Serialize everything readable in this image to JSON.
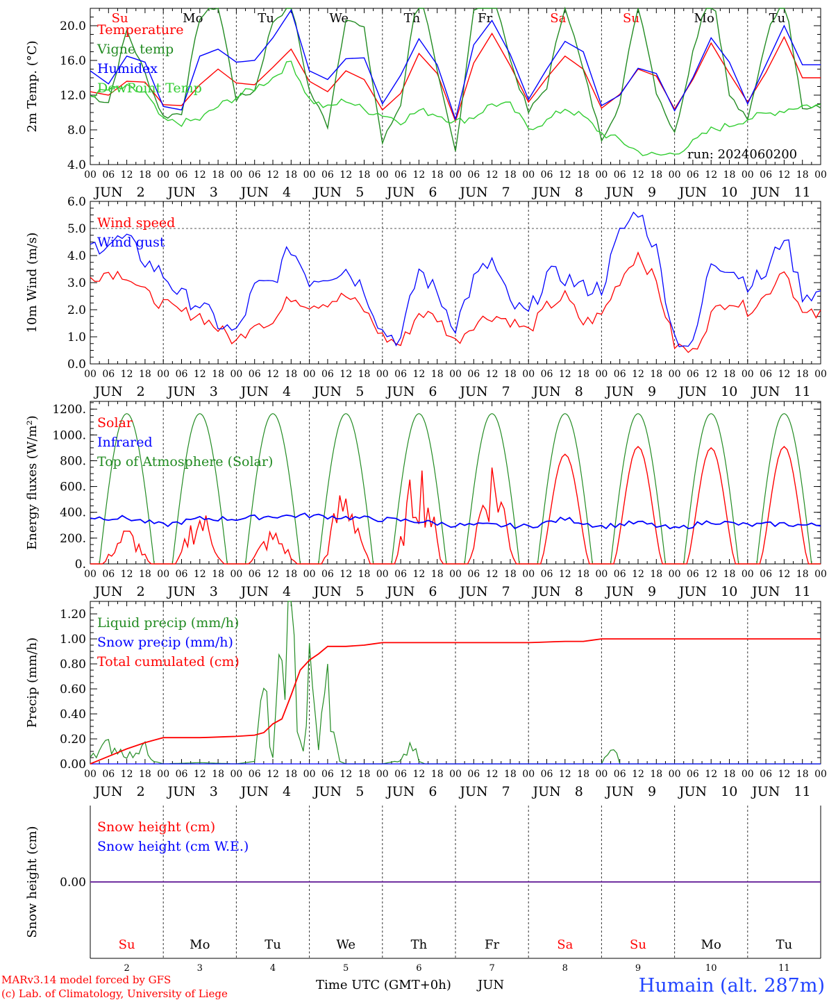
{
  "days": [
    "2",
    "3",
    "4",
    "5",
    "6",
    "7",
    "8",
    "9",
    "10",
    "11"
  ],
  "day_abbr": [
    "Su",
    "Mo",
    "Tu",
    "We",
    "Th",
    "Fr",
    "Sa",
    "Su",
    "Mo",
    "Tu"
  ],
  "weekend_flags": [
    true,
    false,
    false,
    false,
    false,
    false,
    true,
    true,
    false,
    false
  ],
  "hour_labels": [
    "00",
    "06",
    "12",
    "18"
  ],
  "month": "JUN",
  "run_label": "run: 2024060200",
  "colors": {
    "red": "#ff0000",
    "darkgreen": "#228b22",
    "blue": "#0000ff",
    "lightgreen": "#32cd32",
    "purple": "#7030a0",
    "grid": "#555555"
  },
  "chart_data": [
    {
      "type": "line",
      "ylabel": "2m Temp. (°C)",
      "ylim": [
        4,
        22
      ],
      "yticks": [
        "4.0",
        "8.0",
        "12.0",
        "16.0",
        "20.0"
      ],
      "ytick_values": [
        4,
        8,
        12,
        16,
        20
      ],
      "x_unit": "hours since 2024-06-02 00 UTC",
      "series": [
        {
          "name": "Temperature",
          "color": "#ff0000",
          "x": [
            0,
            6,
            12,
            18,
            24,
            30,
            36,
            42,
            48,
            54,
            60,
            66,
            72,
            78,
            84,
            90,
            96,
            102,
            108,
            114,
            120,
            126,
            132,
            138,
            144,
            150,
            156,
            162,
            168,
            174,
            180,
            186,
            192,
            198,
            204,
            210,
            216,
            222,
            228,
            234
          ],
          "y": [
            12.4,
            12.0,
            13.6,
            13.5,
            10.9,
            10.8,
            13.2,
            15.0,
            13.4,
            13.2,
            15.2,
            17.3,
            13.6,
            12.4,
            14.8,
            13.8,
            10.3,
            12.2,
            16.8,
            14.5,
            9.0,
            15.7,
            19.1,
            15.4,
            11.2,
            14.0,
            16.5,
            15.0,
            10.5,
            12.1,
            15.0,
            14.2,
            10.4,
            13.8,
            18.0,
            14.5,
            11.2,
            14.6,
            18.7,
            14.0
          ]
        },
        {
          "name": "Vigne temp",
          "color": "#228b22",
          "x": [
            0,
            6,
            12,
            18,
            24,
            30,
            36,
            42,
            48,
            54,
            60,
            66,
            72,
            78,
            84,
            90,
            96,
            102,
            108,
            114,
            120,
            126,
            132,
            138,
            144,
            150,
            156,
            162,
            168,
            174,
            180,
            186,
            192,
            198,
            204,
            210,
            216,
            222,
            228,
            234
          ],
          "y": [
            11.9,
            11.2,
            19.4,
            14.5,
            9.5,
            10.0,
            21.0,
            22.5,
            11.6,
            12.5,
            20.5,
            22.5,
            12.5,
            8.5,
            21.0,
            19.5,
            6.5,
            11.0,
            25.0,
            14.5,
            5.5,
            22.0,
            25.5,
            16.0,
            10.0,
            13.0,
            22.5,
            14.8,
            7.0,
            11.0,
            23.0,
            12.5,
            7.5,
            17.0,
            25.0,
            12.0,
            9.0,
            18.5,
            24.0,
            10.5
          ]
        },
        {
          "name": "Humidex",
          "color": "#0000ff",
          "x": [
            0,
            6,
            12,
            18,
            24,
            30,
            36,
            42,
            48,
            54,
            60,
            66,
            72,
            78,
            84,
            90,
            96,
            102,
            108,
            114,
            120,
            126,
            132,
            138,
            144,
            150,
            156,
            162,
            168,
            174,
            180,
            186,
            192,
            198,
            204,
            210,
            216,
            222,
            228,
            234
          ],
          "y": [
            14.8,
            13.3,
            16.5,
            15.8,
            10.7,
            10.3,
            16.5,
            17.3,
            15.8,
            16.0,
            18.6,
            21.8,
            14.8,
            13.8,
            16.2,
            16.3,
            11.0,
            14.3,
            18.5,
            15.5,
            9.2,
            17.8,
            20.6,
            16.7,
            11.5,
            15.0,
            18.2,
            17.0,
            10.8,
            12.0,
            15.1,
            14.5,
            10.2,
            14.0,
            18.6,
            15.8,
            11.0,
            15.5,
            20.0,
            15.5
          ]
        },
        {
          "name": "DewPoint Temp",
          "color": "#32cd32",
          "x": [
            0,
            6,
            12,
            18,
            24,
            30,
            36,
            42,
            48,
            54,
            60,
            66,
            72,
            78,
            84,
            90,
            96,
            102,
            108,
            114,
            120,
            126,
            132,
            138,
            144,
            150,
            156,
            162,
            168,
            174,
            180,
            186,
            192,
            198,
            204,
            210,
            216,
            222,
            228,
            234
          ],
          "y": [
            12.0,
            12.6,
            12.8,
            12.2,
            9.0,
            8.8,
            9.2,
            10.7,
            11.8,
            12.8,
            14.0,
            15.9,
            11.5,
            10.5,
            11.5,
            10.3,
            9.8,
            9.0,
            10.2,
            9.8,
            8.9,
            9.5,
            11.0,
            10.8,
            8.2,
            9.0,
            10.5,
            9.5,
            7.6,
            6.8,
            5.5,
            5.0,
            5.3,
            6.5,
            8.0,
            8.5,
            9.3,
            9.8,
            10.3,
            10.8
          ]
        }
      ]
    },
    {
      "type": "line",
      "ylabel": "10m Wind (m/s)",
      "ylim": [
        0,
        6
      ],
      "yticks": [
        "0.0",
        "1.0",
        "2.0",
        "3.0",
        "4.0",
        "5.0",
        "6.0"
      ],
      "ytick_values": [
        0,
        1,
        2,
        3,
        4,
        5,
        6
      ],
      "refline": 5,
      "x_unit": "hours since 2024-06-02 00 UTC",
      "series": [
        {
          "name": "Wind speed",
          "color": "#ff0000",
          "x": [
            0,
            6,
            12,
            18,
            24,
            30,
            36,
            42,
            48,
            54,
            60,
            66,
            72,
            78,
            84,
            90,
            96,
            102,
            108,
            114,
            120,
            126,
            132,
            138,
            144,
            150,
            156,
            162,
            168,
            174,
            180,
            186,
            192,
            198,
            204,
            210,
            216,
            222,
            228,
            234
          ],
          "y": [
            3.2,
            3.4,
            3.3,
            2.6,
            2.2,
            1.9,
            1.8,
            1.3,
            0.8,
            1.6,
            1.5,
            2.5,
            2.2,
            2.3,
            2.5,
            2.0,
            1.0,
            0.7,
            1.9,
            1.7,
            0.8,
            1.5,
            1.8,
            1.6,
            1.2,
            2.1,
            2.5,
            1.5,
            1.8,
            3.1,
            4.1,
            3.0,
            0.7,
            0.4,
            1.8,
            2.4,
            2.0,
            2.5,
            3.6,
            1.8
          ]
        },
        {
          "name": "Wind gust",
          "color": "#0000ff",
          "x": [
            0,
            6,
            12,
            18,
            24,
            30,
            36,
            42,
            48,
            54,
            60,
            66,
            72,
            78,
            84,
            90,
            96,
            102,
            108,
            114,
            120,
            126,
            132,
            138,
            144,
            150,
            156,
            162,
            168,
            174,
            180,
            186,
            192,
            198,
            204,
            210,
            216,
            222,
            228,
            234
          ],
          "y": [
            4.3,
            4.5,
            4.6,
            3.8,
            3.3,
            2.5,
            2.2,
            1.5,
            1.1,
            2.8,
            3.0,
            4.3,
            3.1,
            3.3,
            3.5,
            2.8,
            1.2,
            0.9,
            3.5,
            2.6,
            1.4,
            3.1,
            3.8,
            2.2,
            1.8,
            3.3,
            3.2,
            2.8,
            2.8,
            4.8,
            5.7,
            4.2,
            1.0,
            0.6,
            3.8,
            3.6,
            3.0,
            3.3,
            4.8,
            2.6
          ]
        }
      ]
    },
    {
      "type": "line",
      "ylabel": "Energy fluxes (W/m²)",
      "ylim": [
        0,
        1260
      ],
      "yticks": [
        "0.",
        "200.",
        "400.",
        "600.",
        "800.",
        "1000.",
        "1200."
      ],
      "ytick_values": [
        0,
        200,
        400,
        600,
        800,
        1000,
        1200
      ],
      "x_unit": "hours since 2024-06-02 00 UTC",
      "series": [
        {
          "name": "Solar",
          "color": "#ff0000",
          "note": "daily peaks",
          "day_peaks": [
            300,
            460,
            280,
            670,
            860,
            880,
            850,
            910,
            900,
            910
          ]
        },
        {
          "name": "Infrared",
          "color": "#0000ff",
          "x": [
            0,
            12,
            24,
            36,
            48,
            60,
            72,
            84,
            96,
            108,
            120,
            132,
            144,
            156,
            168,
            180,
            192,
            204,
            216,
            228,
            234
          ],
          "y": [
            360,
            355,
            300,
            350,
            350,
            370,
            375,
            360,
            345,
            330,
            300,
            300,
            290,
            350,
            290,
            320,
            270,
            330,
            300,
            310,
            300
          ]
        },
        {
          "name": "Top of Atmosphere (Solar)",
          "color": "#228b22",
          "peak": 1165,
          "rise_hour": 3,
          "set_hour": 21
        }
      ]
    },
    {
      "type": "line",
      "ylabel": "Precip (mm/h)",
      "ylim": [
        0,
        1.3
      ],
      "yticks": [
        "0.00",
        "0.20",
        "0.40",
        "0.60",
        "0.80",
        "1.00",
        "1.20"
      ],
      "ytick_values": [
        0,
        0.2,
        0.4,
        0.6,
        0.8,
        1.0,
        1.2
      ],
      "x_unit": "hours since 2024-06-02 00 UTC",
      "series": [
        {
          "name": "Liquid precip (mm/h)",
          "color": "#228b22",
          "x": [
            0,
            3,
            6,
            9,
            12,
            15,
            18,
            20,
            24,
            36,
            48,
            54,
            57,
            60,
            63,
            66,
            68,
            70,
            72,
            75,
            78,
            80,
            82,
            84,
            86,
            96,
            102,
            106,
            108,
            110,
            168,
            170,
            172,
            174,
            240
          ],
          "y": [
            0.09,
            0.1,
            0.15,
            0.12,
            0.08,
            0.06,
            0.25,
            0.03,
            0.0,
            0.01,
            0.0,
            0.02,
            0.57,
            0.05,
            0.86,
            1.24,
            0.4,
            0.1,
            0.7,
            0.15,
            0.65,
            0.2,
            0.02,
            0.0,
            0.0,
            0.0,
            0.03,
            0.15,
            0.02,
            0.0,
            0.0,
            0.08,
            0.13,
            0.0,
            0.0
          ]
        },
        {
          "name": "Snow precip (mm/h)",
          "color": "#0000ff",
          "x": [
            0,
            240
          ],
          "y": [
            0,
            0
          ]
        },
        {
          "name": "Total cumulated (cm)",
          "color": "#ff0000",
          "x": [
            0,
            6,
            12,
            18,
            24,
            36,
            48,
            54,
            57,
            60,
            63,
            66,
            69,
            72,
            75,
            78,
            84,
            90,
            96,
            108,
            120,
            144,
            156,
            162,
            168,
            174,
            180,
            240
          ],
          "y": [
            0.0,
            0.06,
            0.12,
            0.17,
            0.21,
            0.21,
            0.22,
            0.23,
            0.25,
            0.32,
            0.36,
            0.55,
            0.75,
            0.83,
            0.88,
            0.94,
            0.94,
            0.95,
            0.97,
            0.97,
            0.97,
            0.97,
            0.98,
            0.98,
            1.0,
            1.0,
            1.0,
            1.0
          ]
        }
      ]
    },
    {
      "type": "line",
      "ylabel": "Snow height (cm)",
      "yticks": [
        "0.00"
      ],
      "x_unit": "hours since 2024-06-02 00 UTC",
      "series": [
        {
          "name": "Snow height (cm)",
          "color": "#ff0000",
          "x": [
            0,
            240
          ],
          "y": [
            0,
            0
          ]
        },
        {
          "name": "Snow height (cm W.E.)",
          "color": "#0000ff",
          "x": [
            0,
            240
          ],
          "y": [
            0,
            0
          ]
        }
      ]
    }
  ],
  "footer": {
    "credit1": "MARv3.14 model forced by GFS",
    "credit2": "(c) Lab. of Climatology, University of Liege",
    "xlabel": "Time UTC (GMT+0h)",
    "month": "JUN",
    "station": "Humain (alt. 287m)"
  }
}
